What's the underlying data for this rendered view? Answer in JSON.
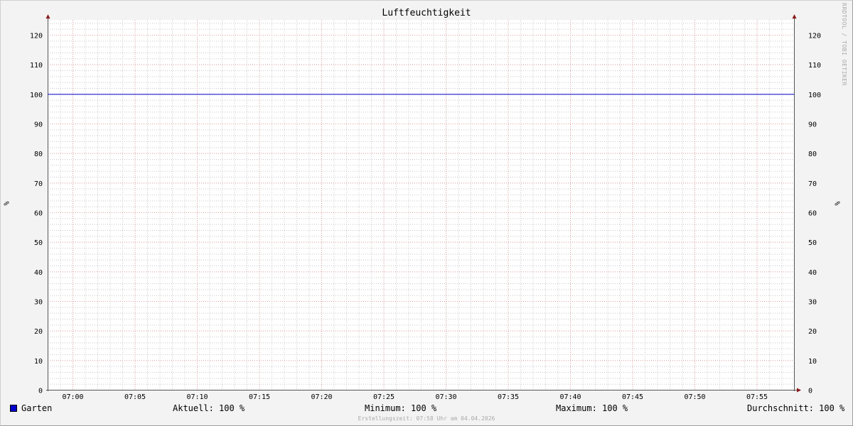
{
  "chart_data": {
    "type": "line",
    "title": "Luftfeuchtigkeit",
    "ylabel": "%",
    "ylim": [
      0,
      125
    ],
    "yticks": [
      0,
      10,
      20,
      30,
      40,
      50,
      60,
      70,
      80,
      90,
      100,
      110,
      120
    ],
    "xlim": [
      "06:58",
      "07:58"
    ],
    "xticks": [
      "07:00",
      "07:05",
      "07:10",
      "07:15",
      "07:20",
      "07:25",
      "07:30",
      "07:35",
      "07:40",
      "07:45",
      "07:50",
      "07:55"
    ],
    "grid": true,
    "series": [
      {
        "name": "Garten",
        "color": "#0000cc",
        "x": [
          "06:58",
          "07:58"
        ],
        "values": [
          100,
          100
        ]
      }
    ]
  },
  "legend": {
    "series_name": "Garten",
    "aktuell": "Aktuell: 100 %",
    "minimum": "Minimum: 100 %",
    "maximum": "Maximum: 100 %",
    "durchschnitt": "Durchschnitt: 100 %"
  },
  "watermark": "RRDTOOL / TOBI OETIKER",
  "footer": "Erstellungszeit: 07:58 Uhr am 04.04.2026",
  "colors": {
    "major_grid": "#e0a0a0",
    "minor_grid": "#c8c8c8",
    "axis": "#555555",
    "arrow": "#8b1a1a"
  }
}
